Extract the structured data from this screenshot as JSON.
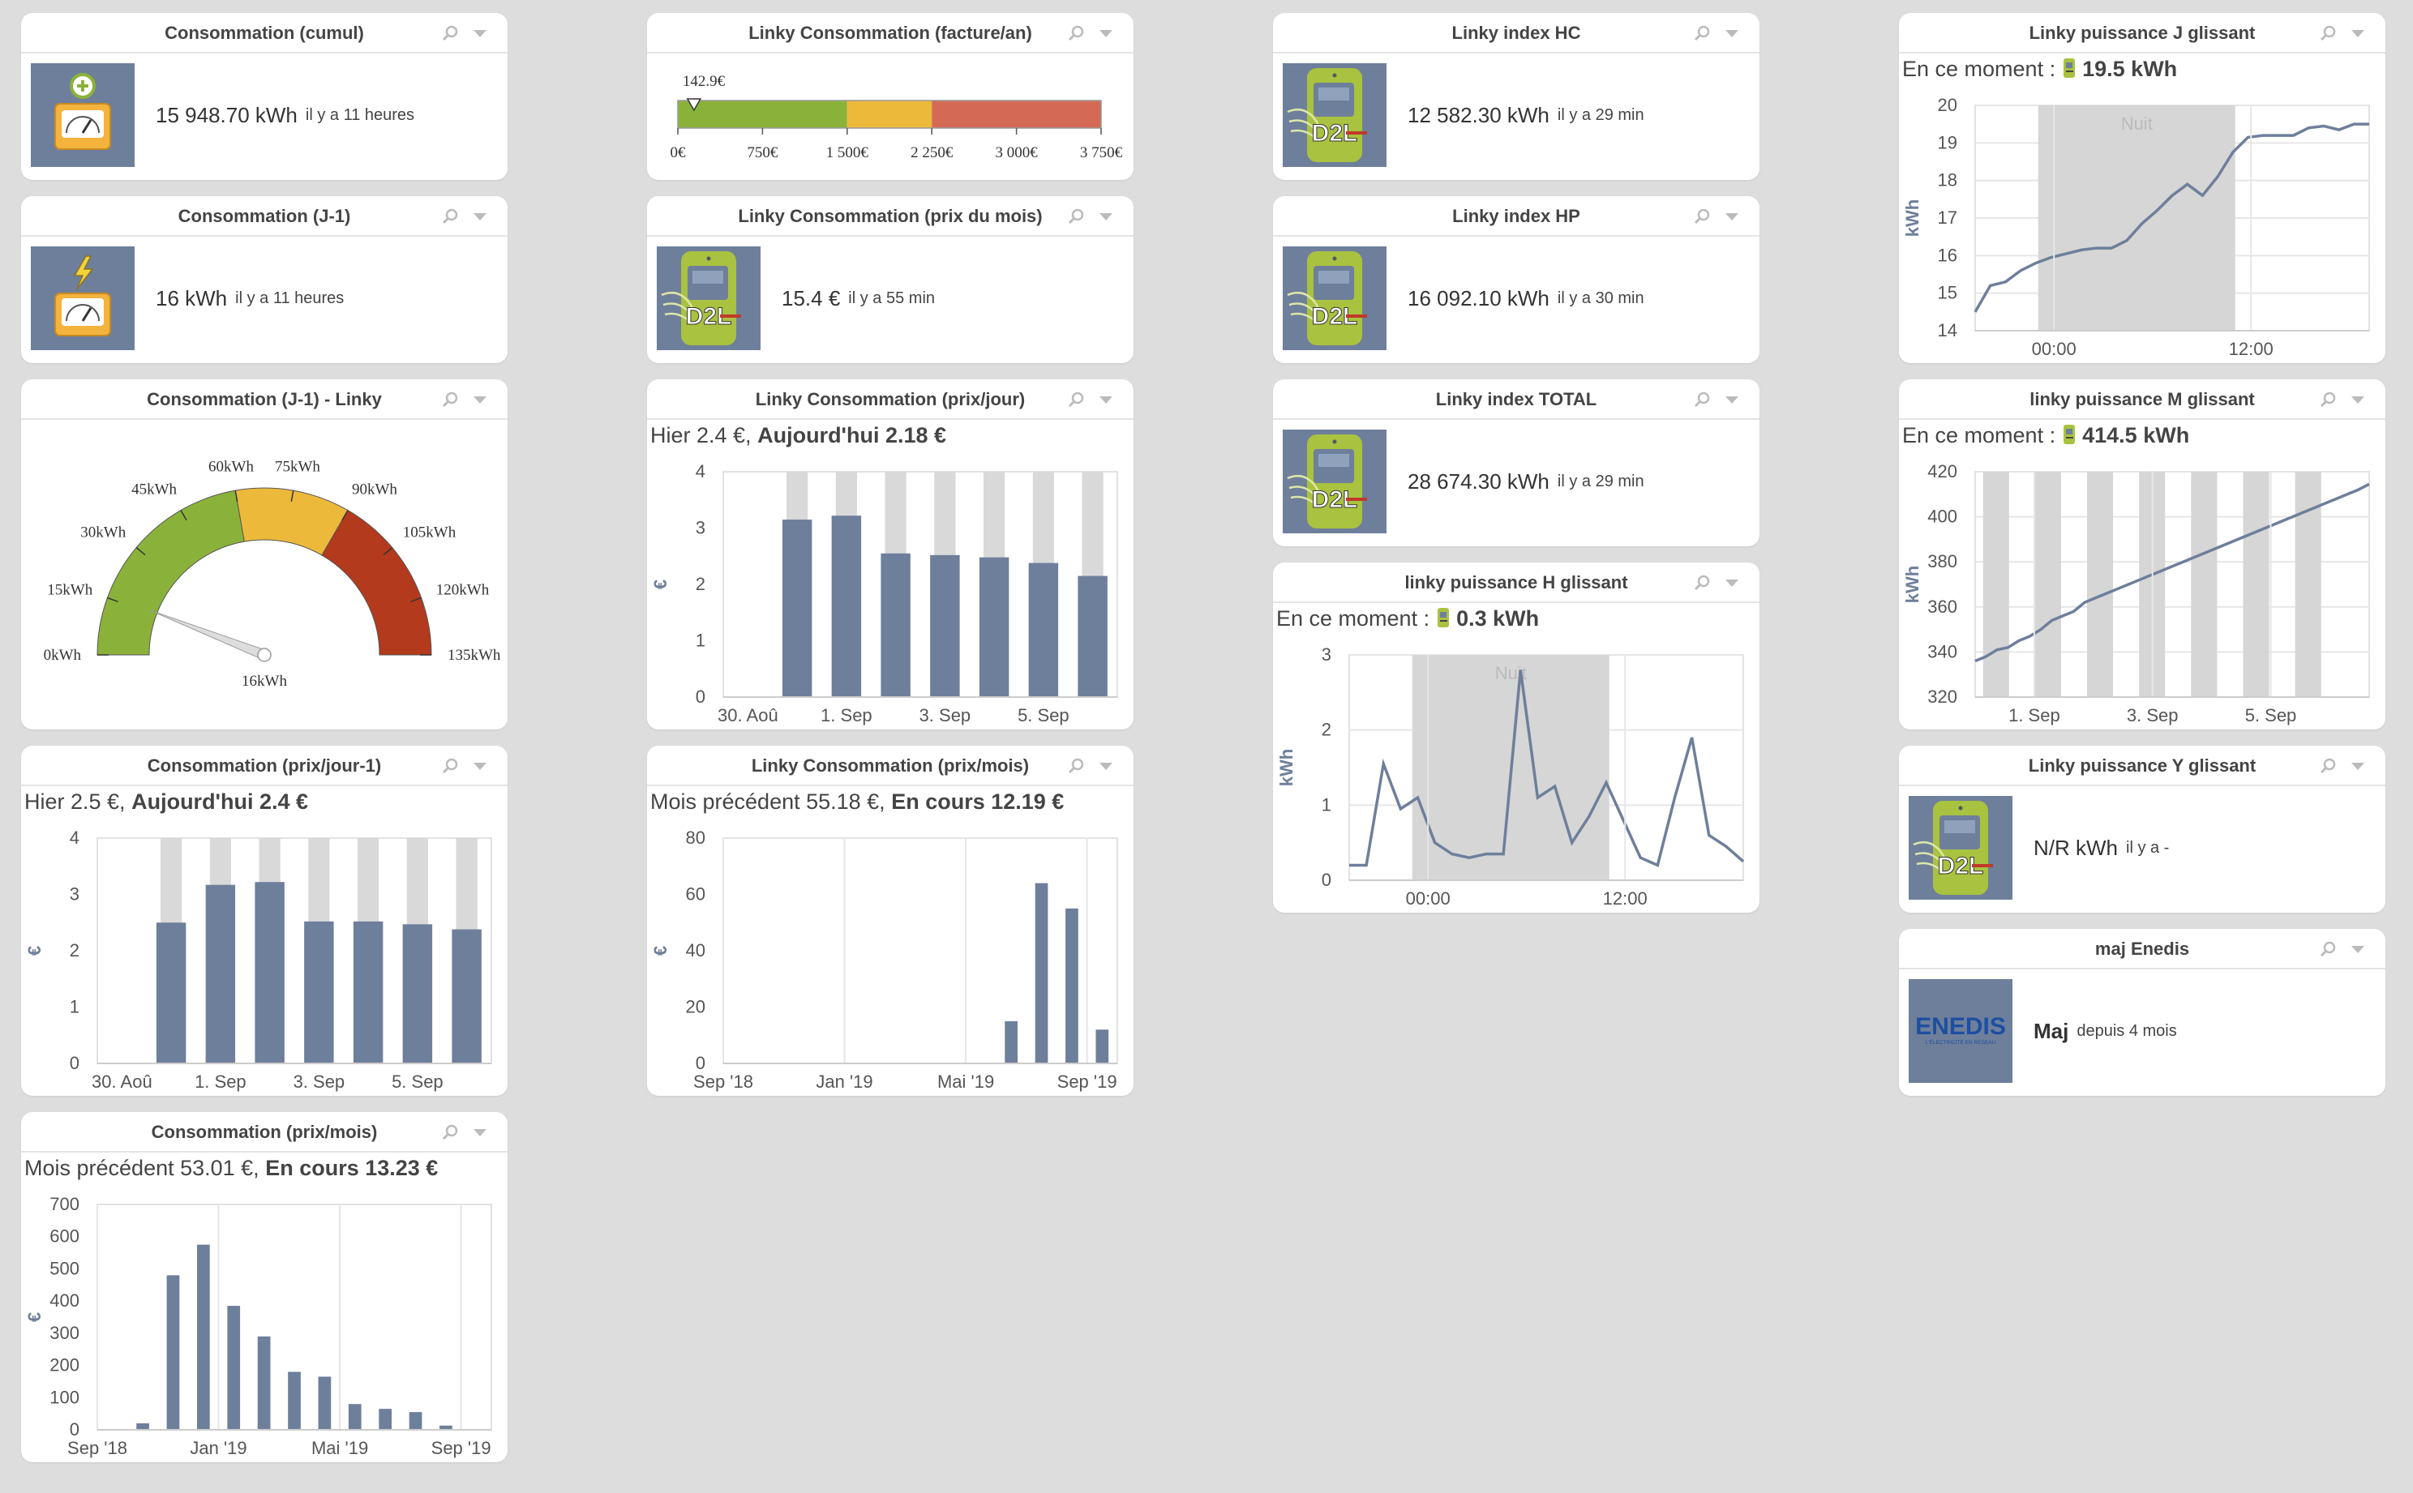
{
  "widgets": {
    "conso_cumul": {
      "title": "Consommation (cumul)",
      "value": "15 948.70 kWh",
      "time": "il y a 11 heures"
    },
    "conso_j1": {
      "title": "Consommation (J-1)",
      "value": "16 kWh",
      "time": "il y a 11 heures"
    },
    "conso_j1_linky": {
      "title": "Consommation (J-1) - Linky",
      "labels": [
        "0kWh",
        "15kWh",
        "30kWh",
        "45kWh",
        "60kWh",
        "75kWh",
        "90kWh",
        "105kWh",
        "120kWh",
        "135kWh"
      ],
      "value_label": "16kWh"
    },
    "conso_prix_jour1": {
      "title": "Consommation (prix/jour-1)",
      "prev": "Hier 2.5 €,",
      "current": "Aujourd'hui 2.4 €"
    },
    "conso_prix_mois": {
      "title": "Consommation (prix/mois)",
      "prev": "Mois précédent 53.01 €,",
      "current": "En cours 13.23 €"
    },
    "linky_facture": {
      "title": "Linky Consommation (facture/an)",
      "marker_label": "142.9€",
      "ticks": [
        "0€",
        "750€",
        "1 500€",
        "2 250€",
        "3 000€",
        "3 750€"
      ]
    },
    "linky_prix_mois_courant": {
      "title": "Linky Consommation (prix du mois)",
      "value": "15.4 €",
      "time": "il y a 55 min"
    },
    "linky_prix_jour": {
      "title": "Linky Consommation (prix/jour)",
      "prev": "Hier 2.4 €,",
      "current": "Aujourd'hui 2.18 €"
    },
    "linky_prix_mois": {
      "title": "Linky Consommation (prix/mois)",
      "prev": "Mois précédent 55.18 €,",
      "current": "En cours 12.19 €"
    },
    "index_hc": {
      "title": "Linky index HC",
      "value": "12 582.30 kWh",
      "time": "il y a 29 min"
    },
    "index_hp": {
      "title": "Linky index HP",
      "value": "16 092.10 kWh",
      "time": "il y a 30 min"
    },
    "index_total": {
      "title": "Linky index TOTAL",
      "value": "28 674.30 kWh",
      "time": "il y a 29 min"
    },
    "puissance_h": {
      "title": "linky puissance H glissant",
      "moment_label": "En ce moment :",
      "moment_value": "0.3 kWh"
    },
    "puissance_j": {
      "title": "Linky puissance J glissant",
      "moment_label": "En ce moment :",
      "moment_value": "19.5 kWh"
    },
    "puissance_m": {
      "title": "linky puissance M glissant",
      "moment_label": "En ce moment :",
      "moment_value": "414.5 kWh"
    },
    "puissance_y": {
      "title": "Linky puissance Y glissant",
      "value": "N/R kWh",
      "time": "il y a -"
    },
    "maj_enedis": {
      "title": "maj Enedis",
      "value": "Maj",
      "time": "depuis 4 mois",
      "logo_text": "ENEDIS",
      "logo_sub": "L'ÉLECTRICITÉ EN RÉSEAU"
    }
  },
  "colors": {
    "bar": "#6e7f9b",
    "bar_bg": "#d9d9d9",
    "line": "#6e7f9b",
    "night": "#d6d6d6",
    "green": "#8ab23a",
    "yellow": "#edb93b",
    "red": "#b33a1c"
  },
  "chart_data": [
    {
      "id": "conso_prix_jour1",
      "type": "bar",
      "categories": [
        "30. Aoû",
        "31. Aoû",
        "1. Sep",
        "2. Sep",
        "3. Sep",
        "4. Sep",
        "5. Sep",
        "6. Sep"
      ],
      "values": [
        null,
        2.5,
        3.17,
        3.22,
        2.52,
        2.52,
        2.47,
        2.38
      ],
      "xlabels": [
        "30. Aoû",
        "1. Sep",
        "3. Sep",
        "5. Sep"
      ],
      "ylabel": "€",
      "ylim": [
        0,
        4
      ],
      "yticks": [
        0,
        1,
        2,
        3,
        4
      ]
    },
    {
      "id": "conso_prix_mois",
      "type": "bar",
      "categories": [
        "Sep '18",
        "Oct '18",
        "Nov '18",
        "Dec '18",
        "Jan '19",
        "Feb '19",
        "Mar '19",
        "Avr '19",
        "Mai '19",
        "Jun '19",
        "Jul '19",
        "Aoû '19",
        "Sep '19"
      ],
      "values": [
        null,
        20,
        480,
        575,
        385,
        290,
        180,
        165,
        80,
        65,
        55,
        13,
        null
      ],
      "xlabels": [
        "Sep '18",
        "Jan '19",
        "Mai '19",
        "Sep '19"
      ],
      "ylabel": "€",
      "ylim": [
        0,
        700
      ],
      "yticks": [
        0,
        100,
        200,
        300,
        400,
        500,
        600,
        700
      ]
    },
    {
      "id": "linky_prix_jour",
      "type": "bar",
      "categories": [
        "30. Aoû",
        "31. Aoû",
        "1. Sep",
        "2. Sep",
        "3. Sep",
        "4. Sep",
        "5. Sep",
        "6. Sep"
      ],
      "values": [
        null,
        3.15,
        3.22,
        2.55,
        2.52,
        2.48,
        2.38,
        2.15
      ],
      "xlabels": [
        "30. Aoû",
        "1. Sep",
        "3. Sep",
        "5. Sep"
      ],
      "ylabel": "€",
      "ylim": [
        0,
        4
      ],
      "yticks": [
        0,
        1,
        2,
        3,
        4
      ]
    },
    {
      "id": "linky_prix_mois",
      "type": "bar",
      "categories": [
        "Sep '18",
        "Oct '18",
        "Nov '18",
        "Dec '18",
        "Jan '19",
        "Feb '19",
        "Mar '19",
        "Avr '19",
        "Mai '19",
        "Jun '19",
        "Jul '19",
        "Aoû '19",
        "Sep '19"
      ],
      "values": [
        null,
        null,
        null,
        null,
        null,
        null,
        null,
        null,
        null,
        15,
        64,
        55,
        12
      ],
      "xlabels": [
        "Sep '18",
        "Jan '19",
        "Mai '19",
        "Sep '19"
      ],
      "ylabel": "€",
      "ylim": [
        0,
        80
      ],
      "yticks": [
        0,
        20,
        40,
        60,
        80
      ]
    },
    {
      "id": "puissance_h",
      "type": "line",
      "values": [
        0.2,
        0.2,
        1.55,
        0.95,
        1.1,
        0.5,
        0.35,
        0.3,
        0.35,
        0.35,
        2.8,
        1.1,
        1.25,
        0.5,
        0.85,
        1.3,
        0.8,
        0.3,
        0.2,
        1.1,
        1.9,
        0.6,
        0.45,
        0.25
      ],
      "ylabel": "kWh",
      "ylim": [
        0,
        3
      ],
      "yticks": [
        0,
        1,
        2,
        3
      ],
      "xlabels": [
        "00:00",
        "12:00"
      ],
      "band_label": "Nuit"
    },
    {
      "id": "puissance_j",
      "type": "line",
      "values": [
        14.5,
        15.2,
        15.3,
        15.6,
        15.8,
        15.95,
        16.05,
        16.15,
        16.2,
        16.2,
        16.4,
        16.85,
        17.2,
        17.6,
        17.9,
        17.6,
        18.1,
        18.75,
        19.15,
        19.2,
        19.2,
        19.2,
        19.4,
        19.45,
        19.35,
        19.5,
        19.5
      ],
      "ylabel": "kWh",
      "ylim": [
        14,
        20
      ],
      "yticks": [
        14,
        15,
        16,
        17,
        18,
        19,
        20
      ],
      "xlabels": [
        "00:00",
        "12:00"
      ],
      "band_label": "Nuit"
    },
    {
      "id": "puissance_m",
      "type": "line",
      "values": [
        336,
        338,
        341,
        342,
        345,
        347,
        350,
        354,
        356,
        358,
        362,
        364,
        366,
        368,
        370,
        372,
        374,
        376,
        378,
        380,
        382,
        384,
        386,
        388,
        390,
        392,
        394,
        396,
        398,
        400,
        402,
        404,
        406,
        408,
        410,
        412,
        414.5
      ],
      "ylabel": "kWh",
      "ylim": [
        320,
        420
      ],
      "yticks": [
        320,
        340,
        360,
        380,
        400,
        420
      ],
      "xlabels": [
        "1. Sep",
        "3. Sep",
        "5. Sep"
      ]
    },
    {
      "id": "linky_facture",
      "type": "gauge-bar",
      "value": 142.9,
      "range": [
        0,
        3750
      ],
      "bands": [
        [
          0,
          1500
        ],
        [
          1500,
          2250
        ],
        [
          2250,
          3750
        ]
      ]
    },
    {
      "id": "conso_j1_linky",
      "type": "gauge",
      "value": 16,
      "range": [
        0,
        135
      ],
      "bands": [
        [
          0,
          60
        ],
        [
          60,
          90
        ],
        [
          90,
          135
        ]
      ]
    }
  ]
}
